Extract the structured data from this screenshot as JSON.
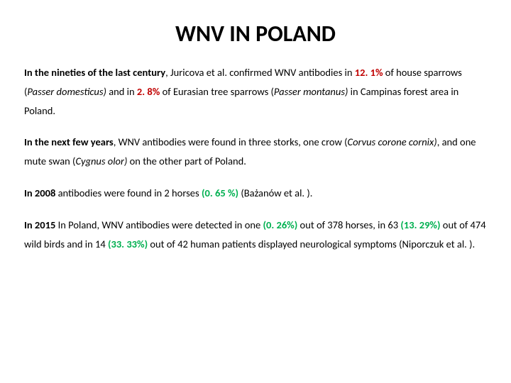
{
  "title": {
    "text": "WNV IN POLAND",
    "fontsize": 32,
    "color": "#000000"
  },
  "body_fontsize": 14.5,
  "colors": {
    "red": "#c00000",
    "green": "#00b050",
    "text": "#000000",
    "background": "#ffffff"
  },
  "p1": {
    "lead": "In the nineties of the last century",
    "t1": ", Juricova et al. confirmed WNV antibodies in ",
    "pct1": "12. 1%",
    "t2": " of house sparrows (",
    "sp1": "Passer domesticus)",
    "t3": " and in ",
    "pct2": "2. 8%",
    "t4": " of Eurasian tree sparrows (",
    "sp2": "Passer montanus)",
    "t5": " in Campinas forest area in Poland."
  },
  "p2": {
    "lead": " In the next few  years",
    "t1": ", WNV antibodies were found in three storks, one crow (",
    "sp1": "Corvus corone cornix)",
    "t2": ", and one mute swan (",
    "sp2": "Cygnus olor)",
    "t3": " on the other part of Poland."
  },
  "p3": {
    "lead": "In 2008",
    "t1": " antibodies were found in 2 horses ",
    "pct1": "(0. 65 %)",
    "t2": " (Bażanów et al. )."
  },
  "p4": {
    "lead": "In 2015",
    "t1": " In Poland, WNV antibodies were detected in one ",
    "pct1": "(0. 26%)",
    "t2": " out of 378 horses, in 63 ",
    "pct2": "(13. 29%)",
    "t3": " out of 474 wild birds  and in 14 ",
    "pct3": "(33. 33%)",
    "t4": " out of 42 human patients displayed neurological symptoms  (Niporczuk et al. )."
  }
}
